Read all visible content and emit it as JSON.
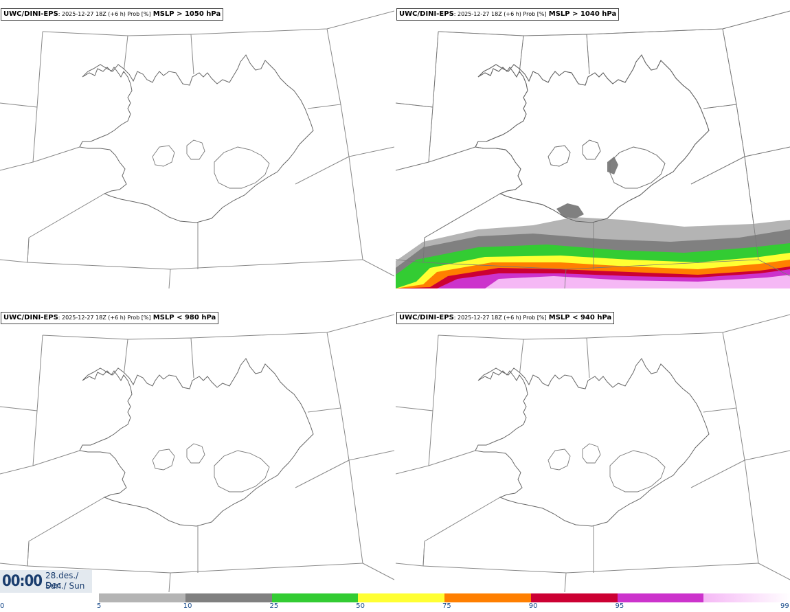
{
  "panels": [
    {
      "model": "UWC/DINI-EPS",
      "meta": ": 2025-12-27 18Z (+6 h) Prob [%]",
      "field": "MSLP > 1050 hPa"
    },
    {
      "model": "UWC/DINI-EPS",
      "meta": ": 2025-12-27 18Z (+6 h) Prob [%]",
      "field": "MSLP > 1040 hPa"
    },
    {
      "model": "UWC/DINI-EPS",
      "meta": ": 2025-12-27 18Z (+6 h) Prob [%]",
      "field": "MSLP < 980 hPa"
    },
    {
      "model": "UWC/DINI-EPS",
      "meta": ": 2025-12-27 18Z (+6 h) Prob [%]",
      "field": "MSLP < 940 hPa"
    }
  ],
  "time": {
    "clock": "00:00",
    "date_line1": "28.des./ Dec",
    "date_line2": "Sun./ Sun"
  },
  "colorbar": {
    "ticks": [
      "0",
      "5",
      "10",
      "25",
      "50",
      "75",
      "90",
      "95",
      "99"
    ],
    "bins": [
      {
        "from": 5,
        "to": 10,
        "color": "#b4b4b4"
      },
      {
        "from": 10,
        "to": 25,
        "color": "#808080"
      },
      {
        "from": 25,
        "to": 50,
        "color": "#33cc33"
      },
      {
        "from": 50,
        "to": 75,
        "color": "#ffff33"
      },
      {
        "from": 75,
        "to": 90,
        "color": "#ff7f00"
      },
      {
        "from": 90,
        "to": 95,
        "color": "#cc0033"
      },
      {
        "from": 95,
        "to": 99,
        "color": "#cc33cc"
      },
      {
        "from": 99,
        "to": 100,
        "color": "#f5b8f5"
      }
    ]
  }
}
